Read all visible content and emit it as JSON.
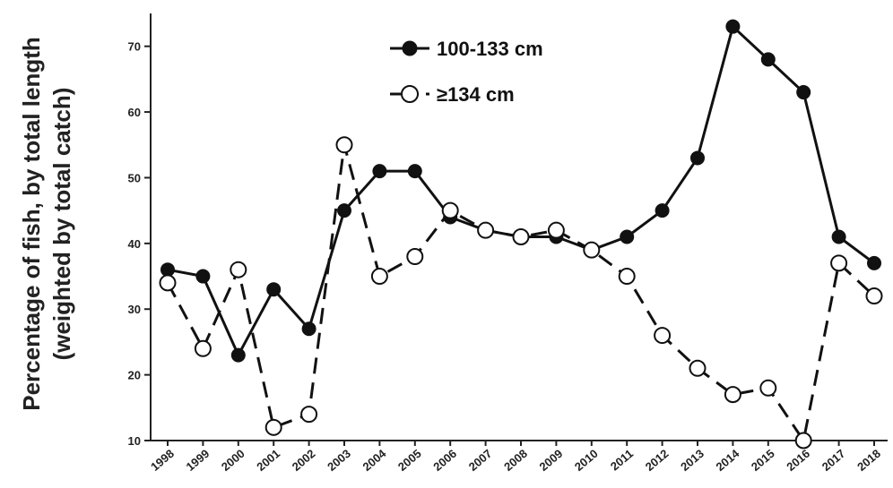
{
  "chart_data": {
    "type": "line",
    "title": "",
    "ylabel_line1": "Percentage of fish, by total length",
    "ylabel_line2": "(weighted by total catch)",
    "xlabel": "",
    "ylim": [
      10,
      75
    ],
    "yticks": [
      10,
      20,
      30,
      40,
      50,
      60,
      70
    ],
    "grid": false,
    "legend_position": "top-center",
    "x": [
      "1998",
      "1999",
      "2000",
      "2001",
      "2002",
      "2003",
      "2004",
      "2005",
      "2006",
      "2007",
      "2008",
      "2009",
      "2010",
      "2011",
      "2012",
      "2013",
      "2014",
      "2015",
      "2016",
      "2017",
      "2018"
    ],
    "series": [
      {
        "name": "100-133 cm",
        "style": "solid",
        "marker": "filled-circle",
        "color": "#111111",
        "values": [
          36,
          35,
          23,
          33,
          27,
          45,
          51,
          51,
          44,
          42,
          41,
          41,
          39,
          41,
          45,
          53,
          73,
          68,
          63,
          41,
          37
        ]
      },
      {
        "name": "≥134 cm",
        "style": "dashed",
        "marker": "open-circle",
        "color": "#111111",
        "values": [
          34,
          24,
          36,
          12,
          14,
          55,
          35,
          38,
          45,
          42,
          41,
          42,
          39,
          35,
          26,
          21,
          17,
          18,
          10,
          37,
          32
        ]
      }
    ]
  }
}
